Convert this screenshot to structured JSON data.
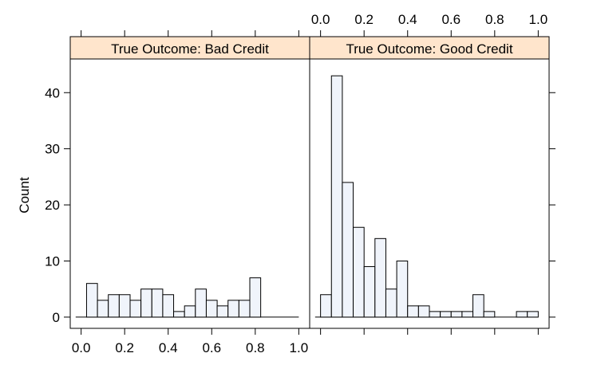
{
  "chart_data": {
    "type": "histogram",
    "ylabel": "Count",
    "xlim": [
      -0.05,
      1.05
    ],
    "ylim": [
      -2,
      46
    ],
    "x_ticks": [
      "0.0",
      "0.2",
      "0.4",
      "0.6",
      "0.8",
      "1.0"
    ],
    "y_ticks": [
      "0",
      "10",
      "20",
      "30",
      "40"
    ],
    "bin_width": 0.05,
    "strip_color": "#ffe5cc",
    "bar_fill": "#f0f4fb",
    "panels": [
      {
        "strip_label": "True Outcome: Bad Credit",
        "bins_start": 0.025,
        "counts": [
          6,
          3,
          4,
          4,
          3,
          5,
          5,
          4,
          1,
          2,
          5,
          3,
          2,
          3,
          3,
          7,
          0,
          0,
          0,
          0,
          0
        ]
      },
      {
        "strip_label": "True Outcome: Good Credit",
        "bins_start": 0.0,
        "counts": [
          4,
          43,
          24,
          16,
          9,
          14,
          5,
          10,
          2,
          2,
          1,
          1,
          1,
          1,
          4,
          1,
          0,
          0,
          1,
          1
        ]
      }
    ]
  }
}
